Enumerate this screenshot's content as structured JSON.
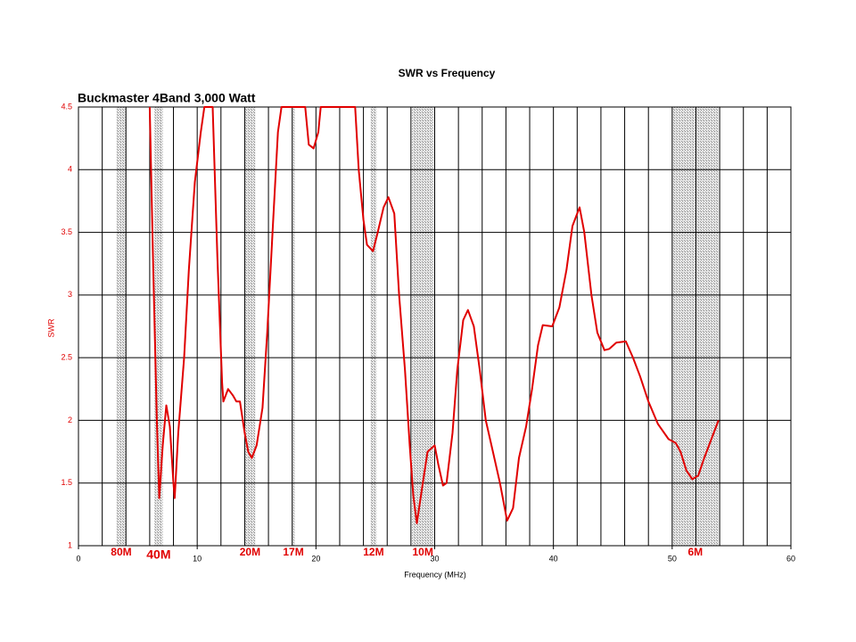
{
  "chart_data": {
    "type": "line",
    "title": "SWR  vs  Frequency",
    "subtitle": "Buckmaster  4Band 3,000 Watt",
    "xlabel": "Frequency (MHz)",
    "ylabel": "SWR",
    "xlim": [
      0,
      60
    ],
    "ylim": [
      1,
      4.5
    ],
    "xticks": [
      0,
      10,
      20,
      30,
      40,
      50,
      60
    ],
    "yticks": [
      1,
      1.5,
      2,
      2.5,
      3,
      3.5,
      4,
      4.5
    ],
    "x_grid_lines": [
      0,
      2,
      4,
      6,
      8,
      10,
      12,
      14,
      16,
      18,
      20,
      22,
      24,
      26,
      28,
      30,
      32,
      34,
      36,
      38,
      40,
      42,
      44,
      46,
      48,
      50,
      52,
      54,
      56,
      58,
      60
    ],
    "grid": true,
    "bands": [
      {
        "label": "80M",
        "range": [
          3.2,
          4.0
        ]
      },
      {
        "label": "40M",
        "range": [
          6.4,
          7.1
        ]
      },
      {
        "label": "20M",
        "range": [
          14.0,
          14.9
        ]
      },
      {
        "label": "17M",
        "range": [
          18.0,
          18.2
        ]
      },
      {
        "label": "12M",
        "range": [
          24.6,
          25.1
        ]
      },
      {
        "label": "10M",
        "range": [
          28.1,
          29.9
        ]
      },
      {
        "label": "6M",
        "range": [
          50.0,
          53.9
        ]
      }
    ],
    "x": [
      6.0,
      6.3,
      6.6,
      6.8,
      7.1,
      7.4,
      7.7,
      8.0,
      8.1,
      8.4,
      8.9,
      9.3,
      9.8,
      10.3,
      10.6,
      11.3,
      11.7,
      12.1,
      12.2,
      12.6,
      13.0,
      13.3,
      13.6,
      14.0,
      14.3,
      14.6,
      15.0,
      15.5,
      15.9,
      16.4,
      16.8,
      17.1,
      19.1,
      19.4,
      19.8,
      20.2,
      20.4,
      23.3,
      23.6,
      24.0,
      24.3,
      24.8,
      25.2,
      25.7,
      26.1,
      26.6,
      27.0,
      27.5,
      27.9,
      28.2,
      28.5,
      29.0,
      29.4,
      30.0,
      30.3,
      30.7,
      31.0,
      31.5,
      31.9,
      32.4,
      32.8,
      33.3,
      33.8,
      34.3,
      34.9,
      35.5,
      36.1,
      36.6,
      37.1,
      37.7,
      38.2,
      38.7,
      39.1,
      39.9,
      40.5,
      41.1,
      41.6,
      42.2,
      42.6,
      43.2,
      43.7,
      44.3,
      44.7,
      45.3,
      46.1,
      46.7,
      47.3,
      48.0,
      48.8,
      49.7,
      50.3,
      50.7,
      51.2,
      51.7,
      52.2,
      52.7,
      53.3,
      53.9
    ],
    "series": [
      {
        "name": "SWR",
        "color": "#e00000",
        "values": [
          4.5,
          3.2,
          2.0,
          1.38,
          1.8,
          2.12,
          1.95,
          1.5,
          1.38,
          1.9,
          2.5,
          3.2,
          3.9,
          4.3,
          4.5,
          4.5,
          3.3,
          2.3,
          2.15,
          2.25,
          2.2,
          2.15,
          2.15,
          1.9,
          1.75,
          1.7,
          1.8,
          2.1,
          2.7,
          3.6,
          4.3,
          4.5,
          4.5,
          4.2,
          4.17,
          4.3,
          4.5,
          4.5,
          4.0,
          3.6,
          3.4,
          3.35,
          3.5,
          3.7,
          3.78,
          3.65,
          3.0,
          2.4,
          1.8,
          1.4,
          1.18,
          1.5,
          1.75,
          1.8,
          1.65,
          1.48,
          1.5,
          1.9,
          2.4,
          2.8,
          2.88,
          2.75,
          2.4,
          2.0,
          1.75,
          1.5,
          1.2,
          1.3,
          1.7,
          1.95,
          2.25,
          2.6,
          2.76,
          2.75,
          2.9,
          3.2,
          3.55,
          3.7,
          3.5,
          3.0,
          2.7,
          2.56,
          2.57,
          2.62,
          2.63,
          2.5,
          2.35,
          2.15,
          1.97,
          1.85,
          1.82,
          1.75,
          1.6,
          1.53,
          1.56,
          1.7,
          1.85,
          2.0
        ]
      }
    ]
  }
}
